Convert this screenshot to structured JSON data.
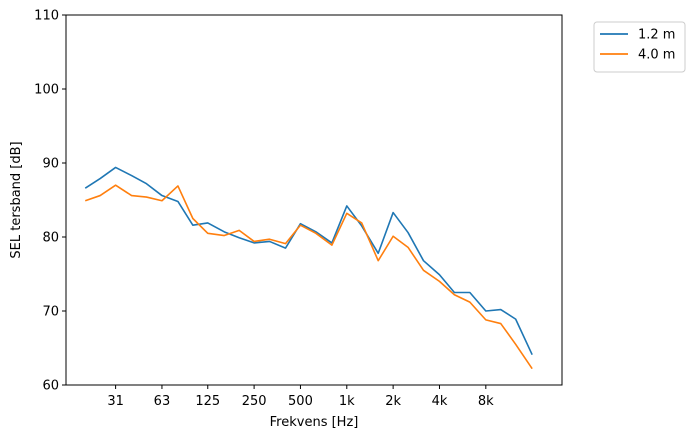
{
  "chart_data": {
    "type": "line",
    "xlabel": "Frekvens [Hz]",
    "ylabel": "SEL tersband [dB]",
    "ylim": [
      60,
      110
    ],
    "yticks": [
      60,
      70,
      80,
      90,
      100,
      110
    ],
    "xscale": "log",
    "xlim_hz": [
      15,
      25000
    ],
    "xticks": [
      {
        "hz": 31.5,
        "label": "31"
      },
      {
        "hz": 63,
        "label": "63"
      },
      {
        "hz": 125,
        "label": "125"
      },
      {
        "hz": 250,
        "label": "250"
      },
      {
        "hz": 500,
        "label": "500"
      },
      {
        "hz": 1000,
        "label": "1k"
      },
      {
        "hz": 2000,
        "label": "2k"
      },
      {
        "hz": 4000,
        "label": "4k"
      },
      {
        "hz": 8000,
        "label": "8k"
      }
    ],
    "x": [
      20,
      25,
      31.5,
      40,
      50,
      63,
      80,
      100,
      125,
      160,
      200,
      250,
      315,
      400,
      500,
      630,
      800,
      1000,
      1250,
      1600,
      2000,
      2500,
      3150,
      4000,
      5000,
      6300,
      8000,
      10000,
      12500,
      16000
    ],
    "series": [
      {
        "name": "1.2 m",
        "color": "#1f77b4",
        "values": [
          86.6,
          87.9,
          89.4,
          88.3,
          87.2,
          85.6,
          84.8,
          81.6,
          81.9,
          80.7,
          79.9,
          79.2,
          79.4,
          78.5,
          81.8,
          80.7,
          79.2,
          84.2,
          81.5,
          77.8,
          83.3,
          80.6,
          76.8,
          74.9,
          72.5,
          72.5,
          70.0,
          70.2,
          68.9,
          64.1
        ]
      },
      {
        "name": "4.0 m",
        "color": "#ff7f0e",
        "values": [
          84.9,
          85.6,
          87.0,
          85.6,
          85.4,
          84.9,
          86.9,
          82.5,
          80.5,
          80.2,
          80.9,
          79.4,
          79.7,
          79.1,
          81.6,
          80.5,
          78.9,
          83.2,
          81.9,
          76.8,
          80.1,
          78.6,
          75.5,
          74.0,
          72.2,
          71.2,
          68.8,
          68.3,
          65.5,
          62.2
        ]
      }
    ],
    "legend_position": "outside-top-right",
    "grid": false
  }
}
